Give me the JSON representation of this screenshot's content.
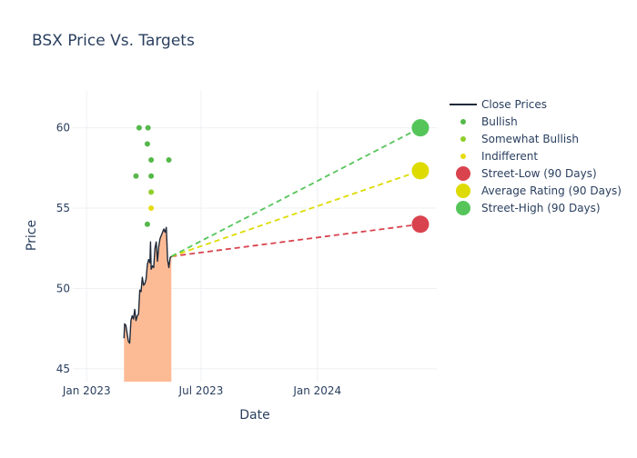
{
  "chart_data": {
    "type": "line",
    "title": "BSX Price Vs. Targets",
    "xlabel": "Date",
    "ylabel": "Price",
    "xlim": [
      "2022-12-10",
      "2024-07-08"
    ],
    "ylim": [
      44.2,
      62.3
    ],
    "x_ticks": [
      {
        "date": "2023-01-01",
        "label": "Jan 2023"
      },
      {
        "date": "2023-07-01",
        "label": "Jul 2023"
      },
      {
        "date": "2024-01-01",
        "label": "Jan 2024"
      }
    ],
    "y_ticks": [
      45,
      50,
      55,
      60
    ],
    "grid": true,
    "legend_position": "top-right",
    "close_prices": {
      "name": "Close Prices",
      "color": "#1f2a3a",
      "fill_color": "#fdbb95",
      "points": [
        [
          "2023-03-01",
          46.9
        ],
        [
          "2023-03-02",
          47.8
        ],
        [
          "2023-03-04",
          47.7
        ],
        [
          "2023-03-06",
          47.2
        ],
        [
          "2023-03-08",
          46.7
        ],
        [
          "2023-03-10",
          46.6
        ],
        [
          "2023-03-12",
          48.0
        ],
        [
          "2023-03-14",
          48.3
        ],
        [
          "2023-03-16",
          48.1
        ],
        [
          "2023-03-18",
          48.7
        ],
        [
          "2023-03-20",
          48.0
        ],
        [
          "2023-03-22",
          48.3
        ],
        [
          "2023-03-24",
          48.4
        ],
        [
          "2023-03-26",
          49.9
        ],
        [
          "2023-03-28",
          49.8
        ],
        [
          "2023-03-30",
          50.7
        ],
        [
          "2023-04-01",
          50.2
        ],
        [
          "2023-04-03",
          50.3
        ],
        [
          "2023-04-05",
          50.6
        ],
        [
          "2023-04-07",
          51.5
        ],
        [
          "2023-04-09",
          51.8
        ],
        [
          "2023-04-11",
          51.6
        ],
        [
          "2023-04-12",
          52.9
        ],
        [
          "2023-04-13",
          51.2
        ],
        [
          "2023-04-15",
          51.4
        ],
        [
          "2023-04-17",
          51.3
        ],
        [
          "2023-04-19",
          52.5
        ],
        [
          "2023-04-21",
          52.9
        ],
        [
          "2023-04-23",
          51.7
        ],
        [
          "2023-04-25",
          52.6
        ],
        [
          "2023-04-27",
          53.1
        ],
        [
          "2023-04-29",
          53.3
        ],
        [
          "2023-05-01",
          53.5
        ],
        [
          "2023-05-03",
          53.7
        ],
        [
          "2023-05-05",
          53.5
        ],
        [
          "2023-05-07",
          53.8
        ],
        [
          "2023-05-09",
          51.8
        ],
        [
          "2023-05-11",
          51.3
        ],
        [
          "2023-05-13",
          51.9
        ],
        [
          "2023-05-15",
          52.0
        ]
      ]
    },
    "ratings": [
      {
        "name": "Bullish",
        "color": "#55b84a",
        "points": [
          [
            "2023-03-20",
            57.0
          ],
          [
            "2023-03-25",
            60.0
          ],
          [
            "2023-04-08",
            60.0
          ],
          [
            "2023-04-07",
            59.0
          ],
          [
            "2023-04-13",
            58.0
          ],
          [
            "2023-04-13",
            57.0
          ],
          [
            "2023-04-07",
            54.0
          ],
          [
            "2023-05-11",
            58.0
          ]
        ]
      },
      {
        "name": "Somewhat Bullish",
        "color": "#8fce2a",
        "points": [
          [
            "2023-04-13",
            56.0
          ]
        ]
      },
      {
        "name": "Indifferent",
        "color": "#e6dc0e",
        "points": [
          [
            "2023-04-13",
            55.0
          ]
        ]
      }
    ],
    "targets": {
      "start": [
        "2023-05-15",
        52.0
      ],
      "end_date": "2024-06-12",
      "series": [
        {
          "name": "Street-Low (90 Days)",
          "color": "#d9434d",
          "value": 54.0
        },
        {
          "name": "Average Rating (90 Days)",
          "color": "#dedb00",
          "value": 57.33
        },
        {
          "name": "Street-High (90 Days)",
          "color": "#55c55a",
          "value": 60.0
        }
      ]
    }
  }
}
